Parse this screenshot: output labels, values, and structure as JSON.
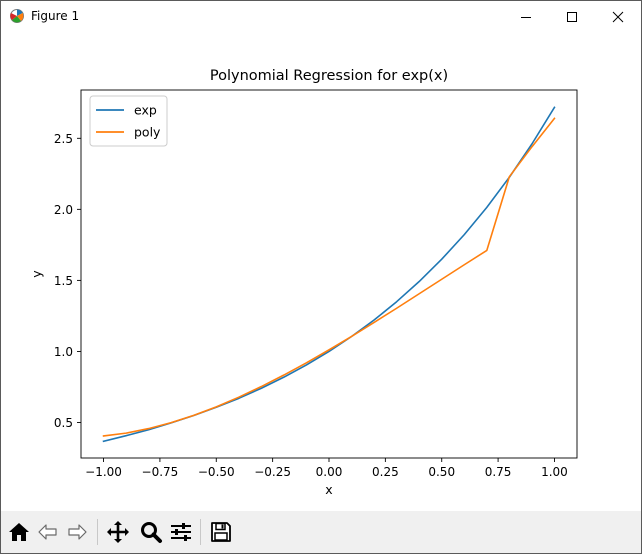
{
  "window": {
    "title": "Figure 1",
    "title_icon": "matplotlib-logo-icon",
    "controls": [
      "minimize-icon",
      "maximize-icon",
      "close-icon"
    ]
  },
  "toolbar": {
    "buttons": [
      {
        "name": "home-button",
        "icon": "home-icon"
      },
      {
        "name": "back-button",
        "icon": "arrow-left-icon"
      },
      {
        "name": "forward-button",
        "icon": "arrow-right-icon"
      },
      {
        "name": "pan-button",
        "icon": "move-arrows-icon"
      },
      {
        "name": "zoom-button",
        "icon": "magnifier-icon"
      },
      {
        "name": "configure-subplots-button",
        "icon": "sliders-icon"
      },
      {
        "name": "save-button",
        "icon": "floppy-disk-icon"
      }
    ]
  },
  "chart_data": {
    "type": "line",
    "title": "Polynomial Regression for exp(x)",
    "xlabel": "x",
    "ylabel": "y",
    "xlim": [
      -1.1,
      1.1
    ],
    "ylim": [
      0.25,
      2.84
    ],
    "xticks": [
      -1.0,
      -0.75,
      -0.5,
      -0.25,
      0.0,
      0.25,
      0.5,
      0.75,
      1.0
    ],
    "xtick_labels": [
      "−1.00",
      "−0.75",
      "−0.50",
      "−0.25",
      "0.00",
      "0.25",
      "0.50",
      "0.75",
      "1.00"
    ],
    "yticks": [
      0.5,
      1.0,
      1.5,
      2.0,
      2.5
    ],
    "ytick_labels": [
      "0.5",
      "1.0",
      "1.5",
      "2.0",
      "2.5"
    ],
    "grid": false,
    "legend_position": "upper left",
    "series": [
      {
        "name": "exp",
        "color": "#1f77b4",
        "x": [
          -1.0,
          -0.9,
          -0.8,
          -0.7,
          -0.6,
          -0.5,
          -0.4,
          -0.3,
          -0.2,
          -0.1,
          0.0,
          0.1,
          0.2,
          0.3,
          0.4,
          0.5,
          0.6,
          0.7,
          0.8,
          0.9,
          1.0
        ],
        "y": [
          0.368,
          0.407,
          0.449,
          0.497,
          0.549,
          0.607,
          0.67,
          0.741,
          0.819,
          0.905,
          1.0,
          1.105,
          1.221,
          1.35,
          1.492,
          1.649,
          1.822,
          2.014,
          2.226,
          2.46,
          2.718
        ]
      },
      {
        "name": "poly",
        "color": "#ff7f0e",
        "x": [
          -1.0,
          -0.9,
          -0.8,
          -0.7,
          -0.6,
          -0.5,
          -0.4,
          -0.3,
          -0.2,
          -0.1,
          0.0,
          0.1,
          0.2,
          0.3,
          0.4,
          0.5,
          0.6,
          0.7,
          0.8,
          0.9,
          1.0
        ],
        "y": [
          0.405,
          0.425,
          0.457,
          0.499,
          0.55,
          0.61,
          0.678,
          0.753,
          0.834,
          0.92,
          1.011,
          1.106,
          1.204,
          1.304,
          1.406,
          1.508,
          1.61,
          1.711,
          2.23,
          2.44,
          2.64
        ]
      }
    ]
  }
}
